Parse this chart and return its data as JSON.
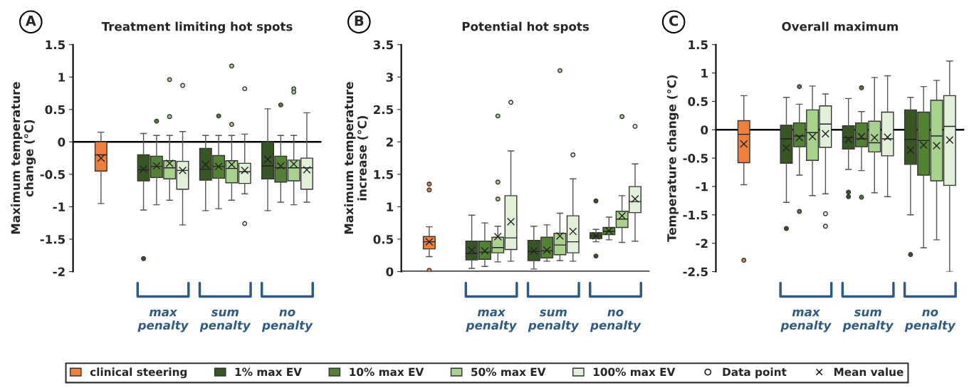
{
  "chart_data": [
    {
      "type": "box",
      "title": "Treatment limiting hot spots",
      "ylabel": "Maximum temperature\nchange (°C)",
      "annotations": [
        "A",
        "Data point",
        "Mean value"
      ],
      "legend": "bottom",
      "categories": [
        null,
        "max penalty",
        "sum penalty",
        "no penalty"
      ],
      "ylim": [
        -2,
        1.5
      ],
      "yticks": [
        -2,
        -1.5,
        -1,
        -0.5,
        0,
        0.5,
        1,
        1.5
      ],
      "ref_lines": [
        {
          "axis": "y",
          "value": 0,
          "color": "#000000"
        }
      ],
      "series": [
        {
          "name": "clinical steering",
          "color": "#f07f3a",
          "boxes": [
            {
              "low": -0.95,
              "q1": -0.45,
              "median": -0.2,
              "q3": 0,
              "high": 0.15,
              "mean": -0.25
            },
            null,
            null,
            null
          ]
        },
        {
          "name": "1% max EV",
          "color": "#375623",
          "boxes": [
            null,
            {
              "low": -1.05,
              "q1": -0.6,
              "median": -0.43,
              "q3": -0.2,
              "high": 0.13,
              "mean": -0.42,
              "outliers": [
                -1.8
              ]
            },
            {
              "low": -1.06,
              "q1": -0.59,
              "median": -0.42,
              "q3": -0.1,
              "high": 0.1,
              "mean": -0.35
            },
            {
              "low": -1.06,
              "q1": -0.57,
              "median": -0.37,
              "q3": 0,
              "high": 0.51,
              "mean": -0.27
            }
          ]
        },
        {
          "name": "10% max EV",
          "color": "#548235",
          "boxes": [
            null,
            {
              "low": -0.97,
              "q1": -0.55,
              "median": -0.38,
              "q3": -0.22,
              "high": 0.1,
              "mean": -0.37,
              "outliers": [
                0.32
              ]
            },
            {
              "low": -1.03,
              "q1": -0.56,
              "median": -0.38,
              "q3": -0.21,
              "high": 0.1,
              "mean": -0.38,
              "outliers": [
                0.4
              ]
            },
            {
              "low": -0.93,
              "q1": -0.62,
              "median": -0.4,
              "q3": -0.22,
              "high": 0.1,
              "mean": -0.37,
              "outliers": [
                0.57
              ]
            }
          ]
        },
        {
          "name": "50% max EV",
          "color": "#a9d18e",
          "boxes": [
            null,
            {
              "low": -0.9,
              "q1": -0.57,
              "median": -0.4,
              "q3": -0.29,
              "high": 0.1,
              "mean": -0.33,
              "outliers": [
                0.96,
                0.39
              ]
            },
            {
              "low": -0.9,
              "q1": -0.63,
              "median": -0.41,
              "q3": -0.29,
              "high": 0.1,
              "mean": -0.35,
              "outliers": [
                1.17,
                0.27
              ]
            },
            {
              "low": -0.97,
              "q1": -0.6,
              "median": -0.4,
              "q3": -0.28,
              "high": 0.1,
              "mean": -0.34,
              "outliers": [
                0.82,
                0.77
              ]
            }
          ]
        },
        {
          "name": "100% max EV",
          "color": "#e2f0d9",
          "boxes": [
            null,
            {
              "low": -1.28,
              "q1": -0.73,
              "median": -0.44,
              "q3": -0.3,
              "high": 0.16,
              "mean": -0.44,
              "outliers": [
                0.87
              ]
            },
            {
              "low": -0.8,
              "q1": -0.64,
              "median": -0.46,
              "q3": -0.33,
              "high": 0.12,
              "mean": -0.44,
              "outliers": [
                0.82,
                -1.26
              ]
            },
            {
              "low": -0.93,
              "q1": -0.73,
              "median": -0.4,
              "q3": -0.25,
              "high": 0.45,
              "mean": -0.43
            }
          ]
        }
      ]
    },
    {
      "type": "box",
      "title": "Potential hot spots",
      "ylabel": "Maximum temperature\nincrease (°C)",
      "annotations": [
        "B"
      ],
      "categories": [
        null,
        "max penalty",
        "sum penalty",
        "no penalty"
      ],
      "ylim": [
        0,
        3.5
      ],
      "yticks": [
        0,
        0.5,
        1,
        1.5,
        2,
        2.5,
        3,
        3.5
      ],
      "ref_lines": [
        {
          "axis": "y",
          "value": 0,
          "color": "#000000"
        }
      ],
      "series": [
        {
          "color": "#f07f3a",
          "boxes": [
            {
              "low": 0.23,
              "q1": 0.35,
              "median": 0.46,
              "q3": 0.54,
              "high": 0.69,
              "mean": 0.46,
              "outliers": [
                1.35,
                1.26,
                0.02
              ]
            },
            null,
            null,
            null
          ]
        },
        {
          "color": "#375623",
          "boxes": [
            null,
            {
              "low": 0.05,
              "q1": 0.18,
              "median": 0.28,
              "q3": 0.47,
              "high": 0.87,
              "mean": 0.33
            },
            {
              "low": 0.04,
              "q1": 0.17,
              "median": 0.31,
              "q3": 0.48,
              "high": 0.7,
              "mean": 0.32
            },
            {
              "low": 0.46,
              "q1": 0.51,
              "median": 0.55,
              "q3": 0.6,
              "high": 0.65,
              "mean": 0.55,
              "outliers": [
                1.09,
                0.24
              ]
            }
          ]
        },
        {
          "color": "#548235",
          "boxes": [
            null,
            {
              "low": 0.08,
              "q1": 0.19,
              "median": 0.3,
              "q3": 0.47,
              "high": 0.75,
              "mean": 0.32
            },
            {
              "low": 0.16,
              "q1": 0.21,
              "median": 0.32,
              "q3": 0.53,
              "high": 0.72,
              "mean": 0.33
            },
            {
              "low": 0.49,
              "q1": 0.57,
              "median": 0.62,
              "q3": 0.68,
              "high": 0.84,
              "mean": 0.63
            }
          ]
        },
        {
          "color": "#a9d18e",
          "boxes": [
            null,
            {
              "low": 0.15,
              "q1": 0.29,
              "median": 0.37,
              "q3": 0.53,
              "high": 0.7,
              "mean": 0.54,
              "outliers": [
                2.4,
                1.38,
                1.12
              ]
            },
            {
              "low": 0.17,
              "q1": 0.26,
              "median": 0.41,
              "q3": 0.59,
              "high": 0.9,
              "mean": 0.55,
              "outliers": [
                3.1
              ]
            },
            {
              "low": 0.45,
              "q1": 0.68,
              "median": 0.81,
              "q3": 0.93,
              "high": 1.17,
              "mean": 0.86,
              "outliers": [
                2.39
              ]
            }
          ]
        },
        {
          "color": "#e2f0d9",
          "boxes": [
            null,
            {
              "low": 0.16,
              "q1": 0.34,
              "median": 0.52,
              "q3": 1.17,
              "high": 1.86,
              "mean": 0.77,
              "outliers": [
                2.61
              ]
            },
            {
              "low": 0.16,
              "q1": 0.29,
              "median": 0.46,
              "q3": 0.86,
              "high": 1.43,
              "mean": 0.62,
              "outliers": [
                1.8
              ]
            },
            {
              "low": 0.47,
              "q1": 0.91,
              "median": 1.08,
              "q3": 1.31,
              "high": 1.66,
              "mean": 1.12,
              "outliers": [
                2.24
              ]
            }
          ]
        }
      ]
    },
    {
      "type": "box",
      "title": "Overall maximum",
      "ylabel": "Temperature change (°C)",
      "annotations": [
        "C"
      ],
      "categories": [
        null,
        "max penalty",
        "sum penalty",
        "no penalty"
      ],
      "ylim": [
        -2.5,
        1.5
      ],
      "yticks": [
        -2.5,
        -2,
        -1.5,
        -1,
        -0.5,
        0,
        0.5,
        1,
        1.5
      ],
      "ref_lines": [
        {
          "axis": "y",
          "value": 0,
          "color": "#000000"
        }
      ],
      "series": [
        {
          "color": "#f07f3a",
          "boxes": [
            {
              "low": -0.97,
              "q1": -0.58,
              "median": -0.08,
              "q3": 0.16,
              "high": 0.6,
              "mean": -0.25,
              "outliers": [
                -2.3
              ]
            },
            null,
            null,
            null
          ]
        },
        {
          "color": "#375623",
          "boxes": [
            null,
            {
              "low": -1.28,
              "q1": -0.59,
              "median": -0.16,
              "q3": 0.08,
              "high": 0.57,
              "mean": -0.32,
              "outliers": [
                -1.74
              ]
            },
            {
              "low": -0.7,
              "q1": -0.34,
              "median": -0.14,
              "q3": 0.07,
              "high": 0.55,
              "mean": -0.17,
              "outliers": [
                -1.1,
                -1.18
              ]
            },
            {
              "low": -1.5,
              "q1": -0.61,
              "median": -0.17,
              "q3": 0.35,
              "high": 0.57,
              "mean": -0.36,
              "outliers": [
                -2.2
              ]
            }
          ]
        },
        {
          "color": "#548235",
          "boxes": [
            null,
            {
              "low": -0.8,
              "q1": -0.3,
              "median": -0.11,
              "q3": 0.12,
              "high": 0.45,
              "mean": -0.14,
              "outliers": [
                0.76,
                -1.44
              ]
            },
            {
              "low": -0.72,
              "q1": -0.3,
              "median": -0.16,
              "q3": 0.12,
              "high": 0.32,
              "mean": -0.12,
              "outliers": [
                0.74,
                -1.19
              ]
            },
            {
              "low": -2.08,
              "q1": -0.8,
              "median": -0.19,
              "q3": 0.31,
              "high": 0.76,
              "mean": -0.27
            }
          ]
        },
        {
          "color": "#a9d18e",
          "boxes": [
            null,
            {
              "low": -1.16,
              "q1": -0.54,
              "median": -0.05,
              "q3": 0.35,
              "high": 0.77,
              "mean": -0.12
            },
            {
              "low": -1.11,
              "q1": -0.39,
              "median": -0.23,
              "q3": 0.15,
              "high": 0.92,
              "mean": -0.14
            },
            {
              "low": -1.94,
              "q1": -0.9,
              "median": -0.11,
              "q3": 0.52,
              "high": 0.87,
              "mean": -0.28
            }
          ]
        },
        {
          "color": "#e2f0d9",
          "boxes": [
            null,
            {
              "low": -1.13,
              "q1": -0.31,
              "median": 0.1,
              "q3": 0.42,
              "high": 0.63,
              "mean": -0.07,
              "outliers": [
                -1.48,
                -1.7
              ]
            },
            {
              "low": -1.18,
              "q1": -0.46,
              "median": -0.16,
              "q3": 0.31,
              "high": 0.95,
              "mean": -0.13
            },
            {
              "low": -2.5,
              "q1": -0.98,
              "median": 0.06,
              "q3": 0.6,
              "high": 1.21,
              "mean": -0.18
            }
          ]
        }
      ]
    }
  ]
}
